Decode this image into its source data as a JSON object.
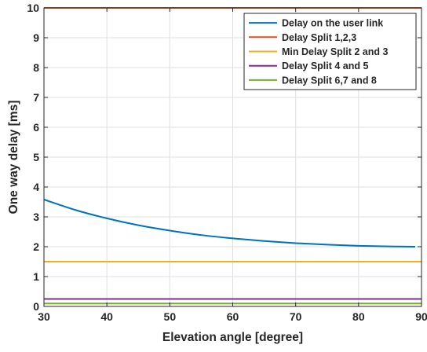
{
  "chart_data": {
    "type": "line",
    "xlabel": "Elevation angle [degree]",
    "ylabel": "One way delay [ms]",
    "xlim": [
      30,
      90
    ],
    "ylim": [
      0,
      10
    ],
    "xticks": [
      30,
      40,
      50,
      60,
      70,
      80,
      90
    ],
    "yticks": [
      0,
      1,
      2,
      3,
      4,
      5,
      6,
      7,
      8,
      9,
      10
    ],
    "grid": true,
    "legend_position": "top-right",
    "series": [
      {
        "name": "Delay on the user link",
        "color": "#0072BD",
        "x": [
          30,
          35,
          40,
          45,
          50,
          55,
          60,
          65,
          70,
          75,
          80,
          85,
          89
        ],
        "y": [
          3.58,
          3.23,
          2.95,
          2.72,
          2.54,
          2.39,
          2.28,
          2.19,
          2.12,
          2.07,
          2.03,
          2.01,
          2.0
        ]
      },
      {
        "name": "Delay Split 1,2,3",
        "color": "#D95319",
        "x": [
          30,
          90
        ],
        "y": [
          10,
          10
        ]
      },
      {
        "name": "Min Delay Split 2 and 3",
        "color": "#EDB120",
        "x": [
          30,
          90
        ],
        "y": [
          1.5,
          1.5
        ]
      },
      {
        "name": "Delay Split 4 and 5",
        "color": "#7E2F8E",
        "x": [
          30,
          90
        ],
        "y": [
          0.25,
          0.25
        ]
      },
      {
        "name": "Delay Split 6,7 and 8",
        "color": "#77AC30",
        "x": [
          30,
          90
        ],
        "y": [
          0.1,
          0.1
        ]
      }
    ]
  }
}
